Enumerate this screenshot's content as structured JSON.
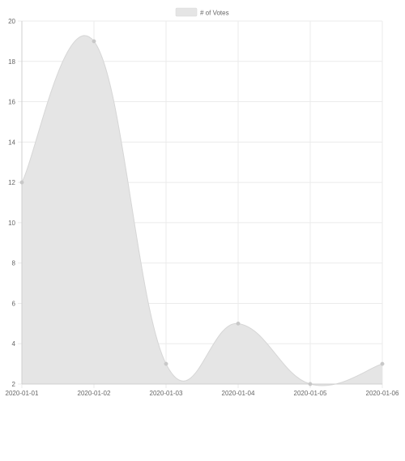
{
  "chart_data": {
    "type": "area",
    "categories": [
      "2020-01-01",
      "2020-01-02",
      "2020-01-03",
      "2020-01-04",
      "2020-01-05",
      "2020-01-06"
    ],
    "series": [
      {
        "name": "# of Votes",
        "values": [
          12,
          19,
          3,
          5,
          2,
          3
        ]
      }
    ],
    "title": "",
    "xlabel": "",
    "ylabel": "",
    "ylim": [
      2,
      20
    ],
    "yticks": [
      2,
      4,
      6,
      8,
      10,
      12,
      14,
      16,
      18,
      20
    ],
    "grid": true,
    "legend_position": "top-center",
    "smooth": true,
    "colors": {
      "fill": "#e5e5e5",
      "line": "#d6d6d6",
      "point": "#c8c8c8",
      "grid": "#ebebeb",
      "axis": "#cfcfcf",
      "tick_text": "#666666",
      "legend_box": "#e5e5e5"
    }
  }
}
